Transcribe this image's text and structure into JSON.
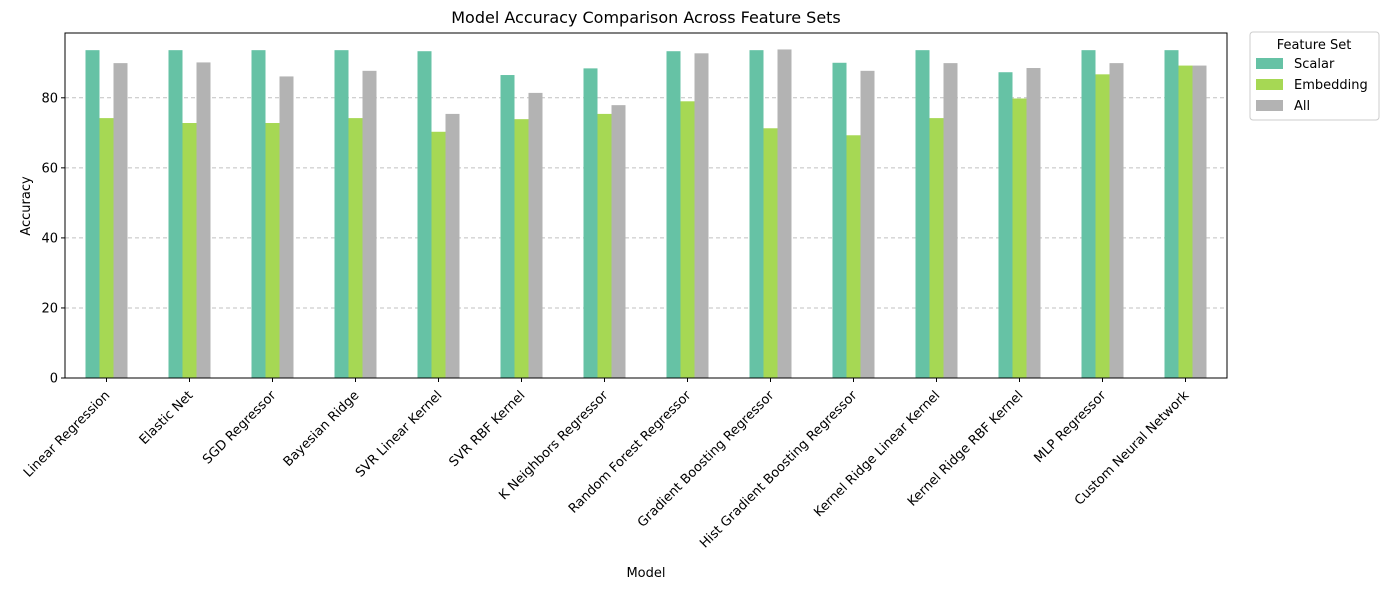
{
  "chart_data": {
    "type": "bar",
    "title": "Model Accuracy Comparison Across Feature Sets",
    "xlabel": "Model",
    "ylabel": "Accuracy",
    "ylim": [
      0,
      98.5
    ],
    "yticks": [
      0,
      20,
      40,
      60,
      80
    ],
    "grid": "y-dashed",
    "legend": {
      "title": "Feature Set",
      "placement": "outside-top-right"
    },
    "categories": [
      "Linear Regression",
      "Elastic Net",
      "SGD Regressor",
      "Bayesian Ridge",
      "SVR Linear Kernel",
      "SVR RBF Kernel",
      "K Neighbors Regressor",
      "Random Forest Regressor",
      "Gradient Boosting Regressor",
      "Hist Gradient Boosting Regressor",
      "Kernel Ridge Linear Kernel",
      "Kernel Ridge RBF Kernel",
      "MLP Regressor",
      "Custom Neural Network"
    ],
    "series": [
      {
        "name": "Scalar",
        "color": "#66c2a5",
        "values": [
          93.6,
          93.6,
          93.6,
          93.6,
          93.3,
          86.5,
          88.4,
          93.3,
          93.6,
          90.0,
          93.6,
          87.3,
          93.6,
          93.6
        ]
      },
      {
        "name": "Embedding",
        "color": "#a6d854",
        "values": [
          74.2,
          72.8,
          72.8,
          74.2,
          70.3,
          73.9,
          75.4,
          79.0,
          71.3,
          69.3,
          74.2,
          79.8,
          86.7,
          89.2
        ]
      },
      {
        "name": "All",
        "color": "#b3b3b3",
        "values": [
          89.9,
          90.1,
          86.1,
          87.7,
          75.4,
          81.4,
          77.9,
          92.7,
          93.8,
          87.7,
          89.9,
          88.5,
          89.9,
          89.2
        ]
      }
    ]
  }
}
